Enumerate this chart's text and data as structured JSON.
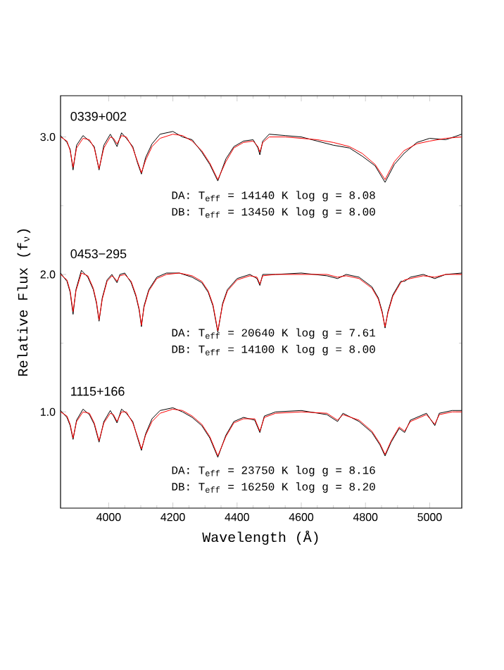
{
  "chart_data": {
    "type": "line",
    "xlabel": "Wavelength (Å)",
    "ylabel": "Relative Flux (f$_{ν}$)",
    "xlim": [
      3850,
      5100
    ],
    "xticks": [
      4000,
      4200,
      4400,
      4600,
      4800,
      5000
    ],
    "ylim": [
      0.3,
      3.3
    ],
    "yticks": [
      {
        "value": 1,
        "label": "1.0"
      },
      {
        "value": 2,
        "label": "2.0"
      },
      {
        "value": 3,
        "label": "3.0"
      }
    ],
    "line_style": "solid",
    "marker": "none",
    "annotations": [
      "DA: T$_{eff}$ = 14140 K  log g = 8.08",
      "DB: T$_{eff}$ = 13450 K  log g = 8.00",
      "DA: T$_{eff}$ = 20640 K  log g = 7.61",
      "DB: T$_{eff}$ = 14100 K  log g = 8.00",
      "DA: T$_{eff}$ = 23750 K  log g = 8.16",
      "DB: T$_{eff}$ = 16250 K  log g = 8.20"
    ],
    "series": [
      {
        "name": "0339+002",
        "color": "#000000",
        "x": [
          3850,
          3870,
          3880,
          3889,
          3900,
          3920,
          3940,
          3955,
          3970,
          3985,
          4005,
          4015,
          4026,
          4040,
          4055,
          4075,
          4090,
          4102,
          4115,
          4135,
          4160,
          4200,
          4230,
          4260,
          4290,
          4315,
          4340,
          4365,
          4390,
          4420,
          4450,
          4465,
          4471,
          4480,
          4500,
          4550,
          4600,
          4650,
          4700,
          4750,
          4790,
          4830,
          4861,
          4890,
          4920,
          4960,
          5000,
          5050,
          5100
        ],
        "values": [
          3.01,
          2.96,
          2.91,
          2.76,
          2.94,
          3.01,
          2.97,
          2.93,
          2.76,
          2.94,
          3.02,
          2.98,
          2.93,
          3.03,
          2.99,
          2.93,
          2.81,
          2.73,
          2.85,
          2.95,
          3.02,
          3.04,
          3.0,
          2.98,
          2.89,
          2.8,
          2.68,
          2.84,
          2.93,
          2.97,
          2.98,
          2.92,
          2.87,
          2.97,
          3.02,
          3.01,
          3.0,
          2.97,
          2.94,
          2.92,
          2.86,
          2.79,
          2.67,
          2.8,
          2.88,
          2.96,
          2.99,
          2.98,
          3.02
        ]
      },
      {
        "color": "#ff0000",
        "x": [
          3850,
          3870,
          3880,
          3889,
          3900,
          3920,
          3940,
          3955,
          3970,
          3985,
          4005,
          4015,
          4026,
          4040,
          4055,
          4075,
          4090,
          4102,
          4115,
          4135,
          4160,
          4200,
          4230,
          4260,
          4290,
          4315,
          4340,
          4365,
          4390,
          4420,
          4450,
          4465,
          4471,
          4480,
          4500,
          4550,
          4600,
          4650,
          4700,
          4750,
          4790,
          4830,
          4861,
          4890,
          4920,
          4960,
          5000,
          5050,
          5100
        ],
        "values": [
          3.0,
          2.97,
          2.9,
          2.78,
          2.92,
          2.99,
          2.98,
          2.92,
          2.77,
          2.92,
          3.0,
          2.99,
          2.95,
          3.01,
          3.0,
          2.92,
          2.82,
          2.74,
          2.83,
          2.93,
          2.99,
          3.02,
          3.01,
          2.97,
          2.9,
          2.81,
          2.69,
          2.82,
          2.92,
          2.96,
          2.97,
          2.93,
          2.89,
          2.96,
          3.0,
          3.0,
          2.99,
          2.98,
          2.96,
          2.93,
          2.88,
          2.8,
          2.69,
          2.82,
          2.9,
          2.95,
          2.97,
          2.99,
          3.0
        ]
      },
      {
        "name": "0453−295",
        "color": "#000000",
        "x": [
          3850,
          3870,
          3880,
          3889,
          3898,
          3915,
          3935,
          3952,
          3962,
          3970,
          3980,
          3995,
          4010,
          4020,
          4026,
          4035,
          4050,
          4070,
          4085,
          4095,
          4102,
          4110,
          4125,
          4150,
          4180,
          4220,
          4260,
          4290,
          4310,
          4325,
          4340,
          4355,
          4370,
          4400,
          4440,
          4462,
          4471,
          4480,
          4520,
          4600,
          4680,
          4713,
          4740,
          4780,
          4820,
          4840,
          4852,
          4861,
          4870,
          4885,
          4910,
          4922,
          4940,
          4980,
          5016,
          5050,
          5100
        ],
        "values": [
          2.01,
          1.95,
          1.87,
          1.71,
          1.89,
          2.03,
          1.98,
          1.89,
          1.79,
          1.66,
          1.83,
          1.96,
          2.0,
          1.96,
          1.94,
          2.0,
          2.01,
          1.94,
          1.84,
          1.74,
          1.62,
          1.77,
          1.89,
          1.98,
          2.01,
          2.01,
          1.98,
          1.94,
          1.87,
          1.77,
          1.58,
          1.79,
          1.89,
          1.97,
          2.0,
          1.97,
          1.92,
          2.0,
          2.0,
          2.01,
          1.99,
          1.97,
          2.0,
          1.98,
          1.91,
          1.83,
          1.73,
          1.61,
          1.73,
          1.85,
          1.95,
          1.95,
          1.98,
          2.0,
          1.97,
          2.0,
          2.01
        ]
      },
      {
        "color": "#ff0000",
        "x": [
          3850,
          3870,
          3880,
          3889,
          3898,
          3915,
          3935,
          3952,
          3962,
          3970,
          3980,
          3995,
          4010,
          4020,
          4026,
          4035,
          4050,
          4070,
          4085,
          4095,
          4102,
          4110,
          4125,
          4150,
          4180,
          4220,
          4260,
          4290,
          4310,
          4325,
          4340,
          4355,
          4370,
          4400,
          4440,
          4462,
          4471,
          4480,
          4520,
          4600,
          4680,
          4713,
          4740,
          4780,
          4820,
          4840,
          4852,
          4861,
          4870,
          4885,
          4910,
          4922,
          4940,
          4980,
          5016,
          5050,
          5100
        ],
        "values": [
          2.0,
          1.96,
          1.88,
          1.73,
          1.88,
          2.01,
          1.99,
          1.9,
          1.8,
          1.67,
          1.82,
          1.95,
          1.99,
          1.97,
          1.95,
          1.99,
          2.0,
          1.95,
          1.85,
          1.75,
          1.63,
          1.76,
          1.88,
          1.97,
          2.0,
          2.01,
          1.99,
          1.95,
          1.88,
          1.78,
          1.59,
          1.78,
          1.88,
          1.96,
          1.99,
          1.98,
          1.93,
          1.99,
          2.0,
          2.0,
          2.0,
          1.98,
          1.99,
          1.97,
          1.9,
          1.82,
          1.72,
          1.62,
          1.72,
          1.84,
          1.94,
          1.96,
          1.97,
          1.99,
          1.98,
          2.0,
          2.0
        ]
      },
      {
        "name": "1115+166",
        "color": "#000000",
        "x": [
          3850,
          3870,
          3880,
          3889,
          3900,
          3920,
          3940,
          3955,
          3970,
          3985,
          4005,
          4015,
          4026,
          4040,
          4055,
          4075,
          4090,
          4102,
          4115,
          4135,
          4160,
          4200,
          4230,
          4260,
          4290,
          4315,
          4340,
          4365,
          4390,
          4420,
          4455,
          4471,
          4485,
          4520,
          4600,
          4680,
          4713,
          4730,
          4780,
          4820,
          4845,
          4861,
          4880,
          4905,
          4922,
          4940,
          4990,
          5016,
          5030,
          5070,
          5100
        ],
        "values": [
          1.01,
          0.96,
          0.9,
          0.8,
          0.94,
          1.02,
          0.98,
          0.91,
          0.78,
          0.93,
          1.01,
          0.97,
          0.92,
          1.02,
          0.99,
          0.93,
          0.81,
          0.72,
          0.84,
          0.95,
          1.01,
          1.03,
          1.0,
          0.96,
          0.9,
          0.81,
          0.67,
          0.83,
          0.93,
          0.96,
          0.94,
          0.85,
          0.97,
          1.0,
          1.01,
          0.98,
          0.93,
          0.99,
          0.93,
          0.85,
          0.76,
          0.68,
          0.78,
          0.88,
          0.85,
          0.94,
          0.99,
          0.9,
          0.99,
          1.01,
          1.01
        ]
      },
      {
        "color": "#ff0000",
        "x": [
          3850,
          3870,
          3880,
          3889,
          3900,
          3920,
          3940,
          3955,
          3970,
          3985,
          4005,
          4015,
          4026,
          4040,
          4055,
          4075,
          4090,
          4102,
          4115,
          4135,
          4160,
          4200,
          4230,
          4260,
          4290,
          4315,
          4340,
          4365,
          4390,
          4420,
          4455,
          4471,
          4485,
          4520,
          4600,
          4680,
          4713,
          4730,
          4780,
          4820,
          4845,
          4861,
          4880,
          4905,
          4922,
          4940,
          4990,
          5016,
          5030,
          5070,
          5100
        ],
        "values": [
          1.0,
          0.97,
          0.91,
          0.81,
          0.93,
          1.0,
          0.99,
          0.92,
          0.79,
          0.92,
          0.99,
          0.98,
          0.93,
          1.0,
          1.0,
          0.92,
          0.82,
          0.73,
          0.83,
          0.93,
          0.99,
          1.02,
          1.01,
          0.97,
          0.91,
          0.82,
          0.68,
          0.82,
          0.92,
          0.95,
          0.95,
          0.86,
          0.96,
          0.99,
          1.0,
          0.99,
          0.94,
          0.98,
          0.94,
          0.86,
          0.77,
          0.69,
          0.79,
          0.89,
          0.86,
          0.93,
          0.98,
          0.91,
          0.98,
          1.0,
          1.0
        ]
      }
    ]
  }
}
